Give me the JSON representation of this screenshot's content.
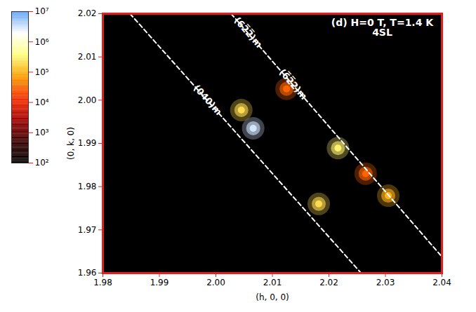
{
  "chart_data": {
    "type": "heatmap",
    "title": "(d) H=0 T, T=1.4 K",
    "subtitle": "4SL",
    "x_label": "(h, 0, 0)",
    "y_label": "(0, k, 0)",
    "xlim": [
      1.98,
      2.04
    ],
    "xticks": [
      1.98,
      1.99,
      {
        "value": 2,
        "label": "2.00"
      },
      2.01,
      2.02,
      2.03,
      2.04
    ],
    "ylim": [
      1.96,
      2.02
    ],
    "yticks": [
      1.96,
      1.97,
      1.98,
      1.99,
      {
        "value": 2,
        "label": "2.00"
      },
      2.01,
      2.02
    ],
    "log": "color",
    "spots": {
      "h": [
        2.0066,
        2.0045,
        2.0182,
        2.0216,
        2.0305,
        2.0125,
        2.0265
      ],
      "k": [
        1.9935,
        1.9977,
        1.976,
        1.9889,
        1.9779,
        2.0026,
        1.983
      ],
      "intensity": [
        3000000,
        200000,
        200000,
        300000,
        100000,
        30000,
        30000
      ]
    },
    "lines": [
      {
        "labels": [
          "(040)m"
        ],
        "h": [
          1.9848,
          2.0257
        ],
        "k": [
          2.02,
          1.96
        ]
      },
      {
        "labels": [
          "(62̅2̅)m",
          "(6̅2̅2)m"
        ],
        "h": [
          2.0027,
          2.0425
        ],
        "k": [
          2.02,
          1.96
        ]
      }
    ],
    "colorbar": {
      "lim": [
        100,
        10000000
      ],
      "ticks": [
        {
          "value": 100,
          "label": "10²"
        },
        {
          "value": 1000,
          "label": "10³"
        },
        {
          "value": 10000,
          "label": "10⁴"
        },
        {
          "value": 100000,
          "label": "10⁵"
        },
        {
          "value": 1000000,
          "label": "10⁶"
        },
        {
          "value": 10000000,
          "label": "10⁷"
        }
      ]
    }
  }
}
